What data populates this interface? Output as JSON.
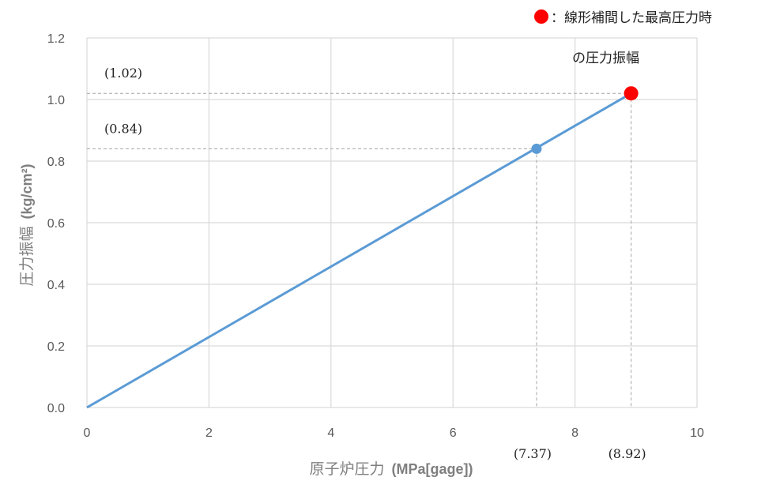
{
  "chart_data": {
    "type": "line",
    "xlabel_prefix": "原子炉圧力",
    "xlabel_unit": "(MPa[gage])",
    "ylabel_prefix": "圧力振幅",
    "ylabel_unit": "(kg/cm²)",
    "xlim": [
      0,
      10
    ],
    "ylim": [
      0,
      1.2
    ],
    "xticks": [
      0,
      2,
      4,
      6,
      8,
      10
    ],
    "yticks": [
      0.0,
      0.2,
      0.4,
      0.6,
      0.8,
      1.0,
      1.2
    ],
    "ytick_labels": [
      "0.0",
      "0.2",
      "0.4",
      "0.6",
      "0.8",
      "1.0",
      "1.2"
    ],
    "grid": true,
    "series": [
      {
        "x": [
          0,
          8.92
        ],
        "y": [
          0,
          1.02
        ]
      }
    ],
    "points": [
      {
        "x": 7.37,
        "y": 0.84,
        "x_label": "(7.37)",
        "y_label": "(0.84)"
      },
      {
        "x": 8.92,
        "y": 1.02,
        "x_label": "(8.92)",
        "y_label": "(1.02)"
      }
    ],
    "legend": {
      "position": "top-right",
      "line1": "：線形補間した最高圧力時",
      "line2": "の圧力振幅"
    },
    "colors": {
      "line": "#5b9bd5",
      "highlight": "#ff0000",
      "grid": "#d9d9d9",
      "guide": "#a6a6a6"
    }
  }
}
